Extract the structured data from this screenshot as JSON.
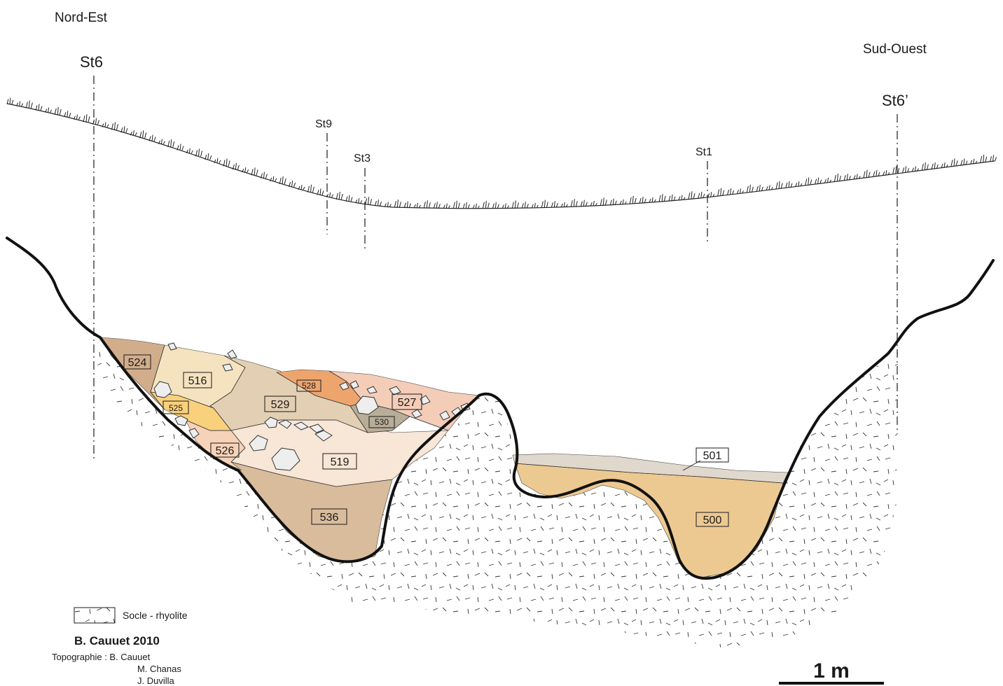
{
  "orientation": {
    "left": "Nord-Est",
    "right": "Sud-Ouest"
  },
  "stations": {
    "st6": "St6",
    "st6p": "St6’",
    "st9": "St9",
    "st3": "St3",
    "st1": "St1"
  },
  "layers": {
    "l524": "524",
    "l516": "516",
    "l525": "525",
    "l526": "526",
    "l529": "529",
    "l528": "528",
    "l527": "527",
    "l530": "530",
    "l519": "519",
    "l536": "536",
    "l501": "501",
    "l500": "500"
  },
  "layer_colors": {
    "l524": "#d2ad8c",
    "l516": "#f5e3c0",
    "l525": "#f9d07c",
    "l526": "#f6d2b8",
    "l529": "#e3cfb3",
    "l528": "#eda56d",
    "l527": "#f4cdb8",
    "l530": "#b8ad98",
    "l519": "#f8e6d6",
    "l536": "#d9bc9c",
    "l501": "#e0d8cc",
    "l500": "#edc992"
  },
  "legend": {
    "bedrock_label": "Socle - rhyolite"
  },
  "credits": {
    "author": "B. Cauuet 2010",
    "topo_prefix": "Topographie : B. Cauuet",
    "topo_line2": "M. Chanas",
    "topo_line3": "J. Duvilla"
  },
  "scale": {
    "label": "1 m"
  }
}
